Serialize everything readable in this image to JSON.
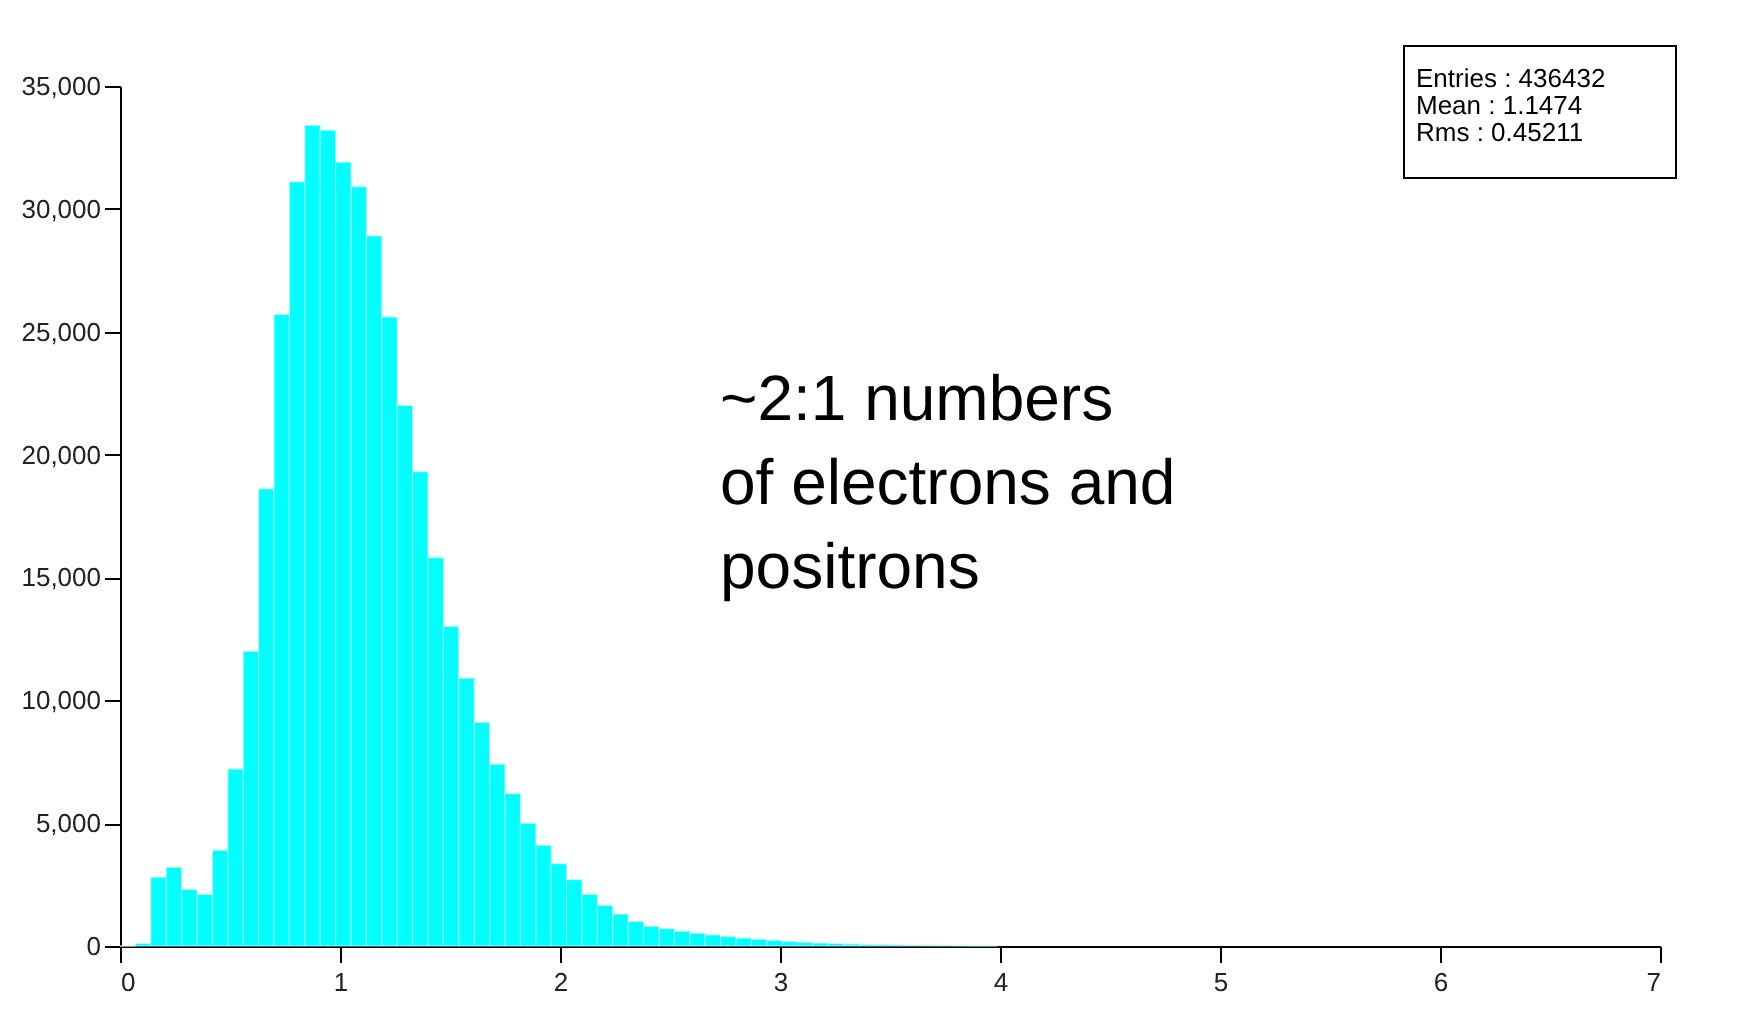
{
  "chart_data": {
    "type": "histogram",
    "bins": [
      0,
      0.07,
      0.14,
      0.21,
      0.28,
      0.35,
      0.42,
      0.49,
      0.56,
      0.63,
      0.7,
      0.77,
      0.84,
      0.91,
      0.98,
      1.05,
      1.12,
      1.19,
      1.26,
      1.33,
      1.4,
      1.47,
      1.54,
      1.61,
      1.68,
      1.75,
      1.82,
      1.89,
      1.96,
      2.03,
      2.1,
      2.17,
      2.24,
      2.31,
      2.38,
      2.45,
      2.52,
      2.59,
      2.66,
      2.73,
      2.8,
      2.87,
      2.94,
      3.01,
      3.08,
      3.15,
      3.22,
      3.29,
      3.36,
      3.43,
      3.5,
      3.57,
      3.64,
      3.71,
      3.78,
      3.85,
      3.92,
      3.99
    ],
    "values": [
      0,
      100,
      2800,
      3200,
      2300,
      2100,
      3900,
      7200,
      12000,
      18600,
      25700,
      31100,
      33400,
      33200,
      31900,
      30900,
      28900,
      25600,
      22000,
      19300,
      15800,
      13000,
      10900,
      9100,
      7400,
      6200,
      5000,
      4100,
      3350,
      2700,
      2100,
      1650,
      1300,
      1000,
      800,
      700,
      600,
      520,
      450,
      380,
      320,
      270,
      220,
      180,
      150,
      120,
      100,
      80,
      60,
      50,
      40,
      30,
      25,
      20,
      15,
      10,
      10
    ],
    "color": "#00ffff",
    "xlim": [
      0,
      7
    ],
    "xticks": [
      0,
      1,
      2,
      3,
      4,
      5,
      6,
      7
    ],
    "ylim": [
      0,
      35000
    ],
    "yticks": [
      {
        "value": 0,
        "label": "0"
      },
      {
        "value": 5000,
        "label": "5,000"
      },
      {
        "value": 10000,
        "label": "10,000"
      },
      {
        "value": 15000,
        "label": "15,000"
      },
      {
        "value": 20000,
        "label": "20,000"
      },
      {
        "value": 25000,
        "label": "25,000"
      },
      {
        "value": 30000,
        "label": "30,000"
      },
      {
        "value": 35000,
        "label": "35,000"
      }
    ],
    "grid": false,
    "annotations": [
      "Entries : 436432",
      "Mean :    1.1474",
      "Rms :   0.45211",
      "~2:1 numbers\nof electrons and\npositrons"
    ]
  }
}
